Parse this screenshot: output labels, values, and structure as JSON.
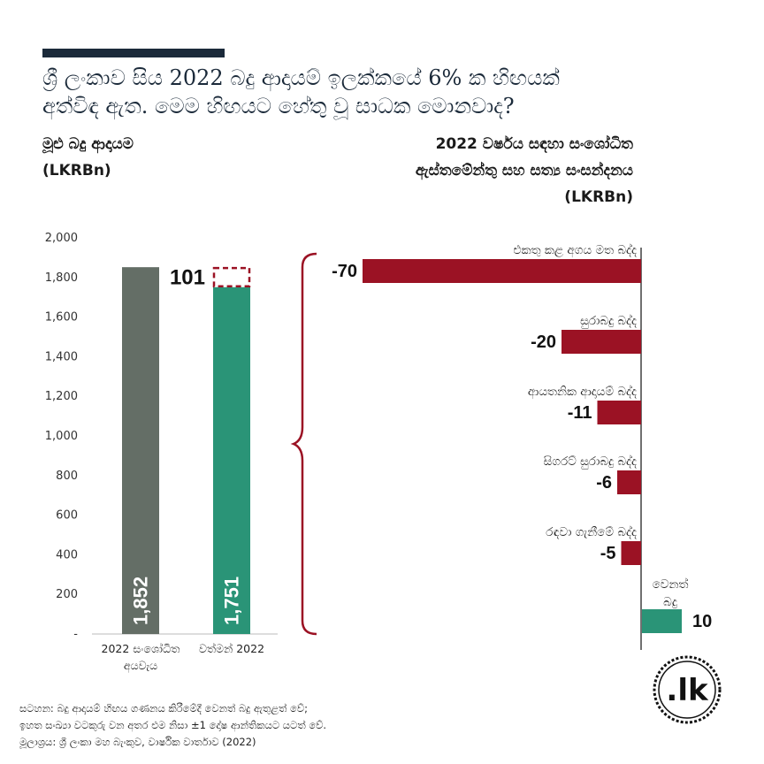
{
  "title": {
    "line1": "ශ්‍රී ලංකාව සිය 2022 බදු ආදායම් ඉලක්කයේ 6% ක හිඟයක්",
    "line2": "අත්විඳ ඇත. මෙම හිඟයට හේතු වූ සාධක මොනවාද?"
  },
  "left_heading": {
    "line1": "මූළු බදු ආදායම",
    "line2": "(LKRBn)"
  },
  "right_heading": {
    "line1": "2022 වර්ෂය සඳහා සංශෝධිත",
    "line2": "ඇස්තමේන්තු සහ සත්‍ය සංසන්දනය",
    "line3": "(LKRBn)"
  },
  "chart_data": [
    {
      "type": "bar",
      "categories": [
        "2022 සංශෝධිත අයවැය",
        "වත්මන් 2022"
      ],
      "values": [
        1852,
        1751
      ],
      "gap_label": "101",
      "ylim": [
        0,
        2000
      ],
      "yticks": [
        "-",
        "200",
        "400",
        "600",
        "800",
        "1,000",
        "1,200",
        "1,400",
        "1,600",
        "1,800",
        "2,000"
      ],
      "value_labels": [
        "1,852",
        "1,751"
      ],
      "category_lines": [
        [
          "2022 සංශෝධිත",
          "අයවැය"
        ],
        [
          "වත්මන් 2022"
        ]
      ],
      "colors": [
        "#646e66",
        "#2a9477"
      ]
    },
    {
      "type": "bar",
      "orientation": "horizontal",
      "categories": [
        "එකතු කළ අගය මත බද්ද",
        "සුරාබදු බද්ද",
        "ආයතනික ආදායම් බද්ද",
        "සිගරට් සුරාබදු බද්ද",
        "රඳවා ගැනීමේ බද්ද",
        "වෙනත් බදු"
      ],
      "category_lines": [
        [
          "එකතු කළ අගය මත බද්ද"
        ],
        [
          "සුරාබදු බද්ද"
        ],
        [
          "ආයතනික ආදායම් බද්ද"
        ],
        [
          "සිගරට් සුරාබදු බද්ද"
        ],
        [
          "රඳවා ගැනීමේ බද්ද"
        ],
        [
          "වෙනත්",
          "බදු"
        ]
      ],
      "values": [
        -70,
        -20,
        -11,
        -6,
        -5,
        10
      ],
      "value_labels": [
        "-70",
        "-20",
        "-11",
        "-6",
        "-5",
        "10"
      ],
      "colors": {
        "negative": "#9b1224",
        "positive": "#2a9477"
      }
    }
  ],
  "notes": {
    "line1": "සටහන: බදු ආදායම් හිඟය ගණනය කිරීමේදී වෙනත් බදු ඇතුළත් වේ;",
    "line2": "ඉහත සංඛ්‍යා වටකුරු වන අතර එම නිසා ±1 දෝෂ ආන්තිකයට යටත් වේ.",
    "line3": "මූලාශ්‍රය: ශ්‍රී ලංකා මහ බැංකුව, වාර්ෂික වාර්තාව (2022)"
  },
  "logo_text": ".lk"
}
